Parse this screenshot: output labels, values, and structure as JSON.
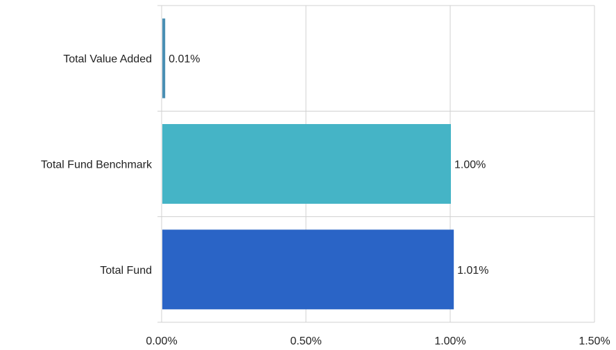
{
  "chart_data": {
    "type": "bar",
    "orientation": "horizontal",
    "categories": [
      "Total Value Added",
      "Total Fund Benchmark",
      "Total Fund"
    ],
    "values": [
      0.01,
      1.0,
      1.01
    ],
    "value_labels": [
      "0.01%",
      "1.00%",
      "1.01%"
    ],
    "colors": [
      "#4a8fb3",
      "#45b4c6",
      "#2a64c6"
    ],
    "xlim": [
      0,
      1.5
    ],
    "xticks": [
      0,
      0.5,
      1.0,
      1.5
    ],
    "xtick_labels": [
      "0.00%",
      "0.50%",
      "1.00%",
      "1.50%"
    ],
    "grid": true,
    "title": "",
    "xlabel": "",
    "ylabel": ""
  }
}
